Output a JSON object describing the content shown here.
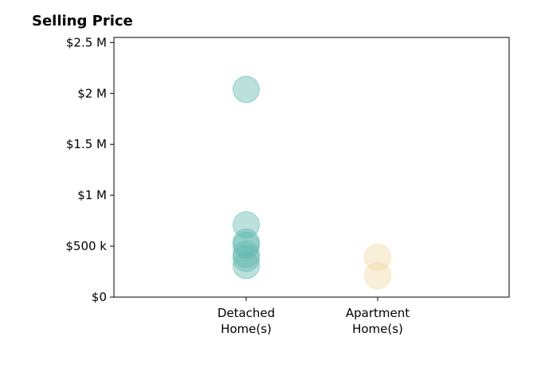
{
  "chart_data": {
    "type": "scatter",
    "title": "Selling Price",
    "xlabel": "",
    "ylabel": "",
    "categories": [
      [
        "Detached",
        "Home(s)"
      ],
      [
        "Apartment",
        "Home(s)"
      ]
    ],
    "y_ticks": [
      {
        "value": 0,
        "label": "$0"
      },
      {
        "value": 500000,
        "label": "$500 k"
      },
      {
        "value": 1000000,
        "label": "$1 M"
      },
      {
        "value": 1500000,
        "label": "$1.5 M"
      },
      {
        "value": 2000000,
        "label": "$2 M"
      },
      {
        "value": 2500000,
        "label": "$2.5 M"
      }
    ],
    "ylim": [
      0,
      2550000
    ],
    "grid": false,
    "series": [
      {
        "category_index": 0,
        "color": "#5fb8ad",
        "values": [
          2040000,
          710000,
          540000,
          510000,
          420000,
          380000,
          310000
        ]
      },
      {
        "category_index": 1,
        "color": "#f0d9a4",
        "values": [
          390000,
          210000
        ]
      }
    ]
  }
}
